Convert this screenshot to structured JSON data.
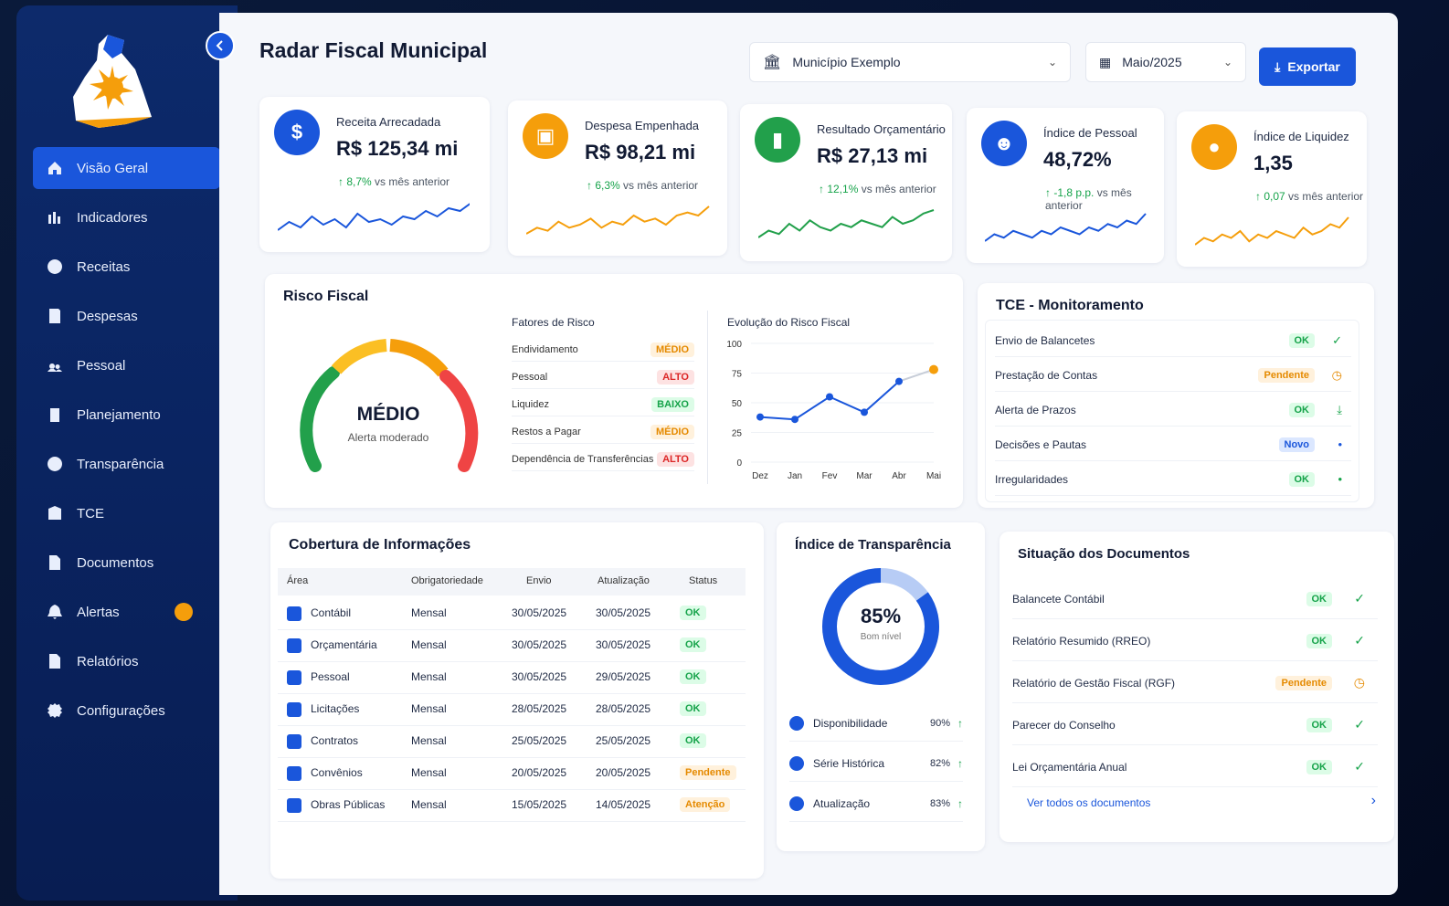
{
  "app": {
    "title": "Radar Fiscal Municipal"
  },
  "header": {
    "municipio": "Município Exemplo",
    "periodo": "Maio/2025",
    "export_label": "Exportar"
  },
  "sidebar": {
    "items": [
      {
        "label": "Visão Geral",
        "icon": "home-icon",
        "active": true
      },
      {
        "label": "Indicadores",
        "icon": "bar-chart-icon"
      },
      {
        "label": "Receitas",
        "icon": "dollar-icon"
      },
      {
        "label": "Despesas",
        "icon": "document-icon"
      },
      {
        "label": "Pessoal",
        "icon": "people-icon"
      },
      {
        "label": "Planejamento",
        "icon": "clipboard-icon"
      },
      {
        "label": "Transparência",
        "icon": "globe-icon"
      },
      {
        "label": "TCE",
        "icon": "building-icon"
      },
      {
        "label": "Documentos",
        "icon": "file-icon"
      },
      {
        "label": "Alertas",
        "icon": "bell-icon"
      },
      {
        "label": "Relatórios",
        "icon": "report-icon"
      },
      {
        "label": "Configurações",
        "icon": "gear-icon"
      }
    ]
  },
  "kpis": [
    {
      "label": "Receita Arrecadada",
      "value": "R$ 125,34 mi",
      "delta": "8,7%",
      "delta_text": "vs mês anterior",
      "color": "#1a56db",
      "symbol": "$",
      "spark": [
        5,
        8,
        6,
        10,
        7,
        9,
        6,
        11,
        8,
        9,
        7,
        10,
        9,
        12,
        10,
        13,
        12,
        15
      ]
    },
    {
      "label": "Despesa Empenhada",
      "value": "R$ 98,21 mi",
      "delta": "6,3%",
      "delta_text": "vs mês anterior",
      "color": "#f59e0b",
      "symbol": "▣",
      "spark": [
        4,
        6,
        5,
        8,
        6,
        7,
        9,
        6,
        8,
        7,
        10,
        8,
        9,
        7,
        10,
        11,
        10,
        13
      ]
    },
    {
      "label": "Resultado Orçamentário",
      "value": "R$ 27,13 mi",
      "delta": "12,1%",
      "delta_text": "vs mês anterior",
      "color": "#22a04b",
      "symbol": "▮",
      "spark": [
        5,
        7,
        6,
        9,
        7,
        10,
        8,
        7,
        9,
        8,
        10,
        9,
        8,
        11,
        9,
        10,
        12,
        13
      ]
    },
    {
      "label": "Índice de Pessoal",
      "value": "48,72%",
      "delta": "-1,8 p.p.",
      "delta_text": "vs mês anterior",
      "color": "#1a56db",
      "symbol": "☻",
      "spark": [
        6,
        8,
        7,
        9,
        8,
        7,
        9,
        8,
        10,
        9,
        8,
        10,
        9,
        11,
        10,
        12,
        11,
        14
      ]
    },
    {
      "label": "Índice de Liquidez",
      "value": "1,35",
      "delta": "0,07",
      "delta_text": "vs mês anterior",
      "color": "#f59e0b",
      "symbol": "●",
      "spark": [
        5,
        7,
        6,
        8,
        7,
        9,
        6,
        8,
        7,
        9,
        8,
        7,
        10,
        8,
        9,
        11,
        10,
        13
      ]
    }
  ],
  "risco": {
    "title": "Risco Fiscal",
    "level": "MÉDIO",
    "level_sub": "Alerta moderado",
    "fatores_title": "Fatores de Risco",
    "fatores": [
      {
        "name": "Endividamento",
        "level": "MÉDIO",
        "kind": "medio"
      },
      {
        "name": "Pessoal",
        "level": "ALTO",
        "kind": "alto"
      },
      {
        "name": "Liquidez",
        "level": "BAIXO",
        "kind": "baixo"
      },
      {
        "name": "Restos a Pagar",
        "level": "MÉDIO",
        "kind": "medio"
      },
      {
        "name": "Dependência de Transferências",
        "level": "ALTO",
        "kind": "alto"
      }
    ],
    "evolucao_title": "Evolução do Risco Fiscal"
  },
  "chart_data": {
    "type": "line",
    "title": "Evolução do Risco Fiscal",
    "categories": [
      "Dez",
      "Jan",
      "Fev",
      "Mar",
      "Abr",
      "Mai"
    ],
    "values": [
      38,
      36,
      55,
      42,
      68,
      78
    ],
    "ylim": [
      0,
      100
    ],
    "yticks": [
      0,
      25,
      50,
      75,
      100
    ],
    "grid": true
  },
  "tce": {
    "title": "TCE - Monitoramento",
    "rows": [
      {
        "name": "Envio de Balancetes",
        "status": "OK",
        "kind": "ok",
        "mark": "✓"
      },
      {
        "name": "Prestação de Contas",
        "status": "Pendente",
        "kind": "pend",
        "mark": "◷"
      },
      {
        "name": "Alerta de Prazos",
        "status": "OK",
        "kind": "ok",
        "mark": "⤓"
      },
      {
        "name": "Decisões e Pautas",
        "status": "Novo",
        "kind": "novo",
        "mark": "•"
      },
      {
        "name": "Irregularidades",
        "status": "OK",
        "kind": "ok",
        "mark": "•"
      }
    ]
  },
  "cobertura": {
    "title": "Cobertura de Informações",
    "headers": [
      "Área",
      "Obrigatoriedade",
      "Envio",
      "Atualização",
      "Status"
    ],
    "rows": [
      {
        "area": "Contábil",
        "obrig": "Mensal",
        "envio": "30/05/2025",
        "atual": "30/05/2025",
        "status": "OK",
        "kind": "ok"
      },
      {
        "area": "Orçamentária",
        "obrig": "Mensal",
        "envio": "30/05/2025",
        "atual": "30/05/2025",
        "status": "OK",
        "kind": "ok"
      },
      {
        "area": "Pessoal",
        "obrig": "Mensal",
        "envio": "30/05/2025",
        "atual": "29/05/2025",
        "status": "OK",
        "kind": "ok"
      },
      {
        "area": "Licitações",
        "obrig": "Mensal",
        "envio": "28/05/2025",
        "atual": "28/05/2025",
        "status": "OK",
        "kind": "ok"
      },
      {
        "area": "Contratos",
        "obrig": "Mensal",
        "envio": "25/05/2025",
        "atual": "25/05/2025",
        "status": "OK",
        "kind": "ok"
      },
      {
        "area": "Convênios",
        "obrig": "Mensal",
        "envio": "20/05/2025",
        "atual": "20/05/2025",
        "status": "Pendente",
        "kind": "pend"
      },
      {
        "area": "Obras Públicas",
        "obrig": "Mensal",
        "envio": "15/05/2025",
        "atual": "14/05/2025",
        "status": "Atenção",
        "kind": "att"
      }
    ]
  },
  "transparencia": {
    "title": "Índice de Transparência",
    "value": "85%",
    "fraction": 0.85,
    "sub": "Bom nível",
    "rows": [
      {
        "name": "Disponibilidade",
        "pct": "90%"
      },
      {
        "name": "Série Histórica",
        "pct": "82%"
      },
      {
        "name": "Atualização",
        "pct": "83%"
      }
    ]
  },
  "documentos": {
    "title": "Situação dos Documentos",
    "rows": [
      {
        "name": "Balancete Contábil",
        "status": "OK",
        "kind": "ok",
        "mark": "✓"
      },
      {
        "name": "Relatório Resumido (RREO)",
        "status": "OK",
        "kind": "ok",
        "mark": "✓"
      },
      {
        "name": "Relatório de Gestão Fiscal (RGF)",
        "status": "Pendente",
        "kind": "pend",
        "mark": "◷"
      },
      {
        "name": "Parecer do Conselho",
        "status": "OK",
        "kind": "ok",
        "mark": "✓"
      },
      {
        "name": "Lei Orçamentária Anual",
        "status": "OK",
        "kind": "ok",
        "mark": "✓"
      }
    ],
    "link": "Ver todos os documentos"
  }
}
